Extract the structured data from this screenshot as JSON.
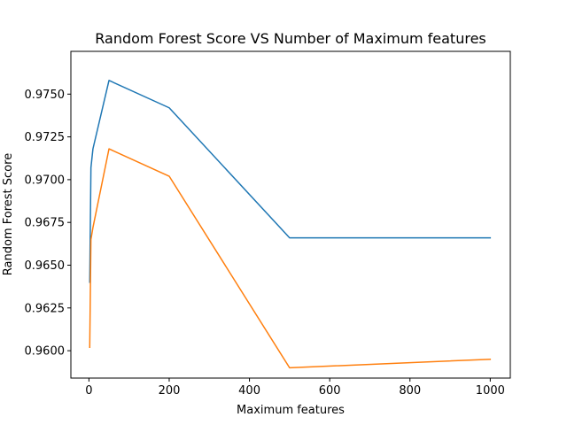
{
  "chart_data": {
    "type": "line",
    "title": "Random Forest Score VS Number of Maximum features",
    "xlabel": "Maximum features",
    "ylabel": "Random Forest Score",
    "xlim": [
      -45,
      1050
    ],
    "ylim": [
      0.9584,
      0.9775
    ],
    "xticks": [
      0,
      200,
      400,
      600,
      800,
      1000
    ],
    "xtick_labels": [
      "0",
      "200",
      "400",
      "600",
      "800",
      "1000"
    ],
    "yticks": [
      0.96,
      0.9625,
      0.965,
      0.9675,
      0.97,
      0.9725,
      0.975
    ],
    "ytick_labels": [
      "0.9600",
      "0.9625",
      "0.9650",
      "0.9675",
      "0.9700",
      "0.9725",
      "0.9750"
    ],
    "grid": false,
    "series": [
      {
        "color": "#1f77b4",
        "x": [
          2,
          5,
          10,
          50,
          200,
          500,
          1000
        ],
        "y": [
          0.964,
          0.9707,
          0.9718,
          0.9758,
          0.9742,
          0.9666,
          0.9666
        ]
      },
      {
        "color": "#ff7f0e",
        "x": [
          2,
          5,
          10,
          50,
          200,
          500,
          1000
        ],
        "y": [
          0.9602,
          0.9665,
          0.9672,
          0.9718,
          0.9702,
          0.959,
          0.9595
        ]
      }
    ]
  }
}
